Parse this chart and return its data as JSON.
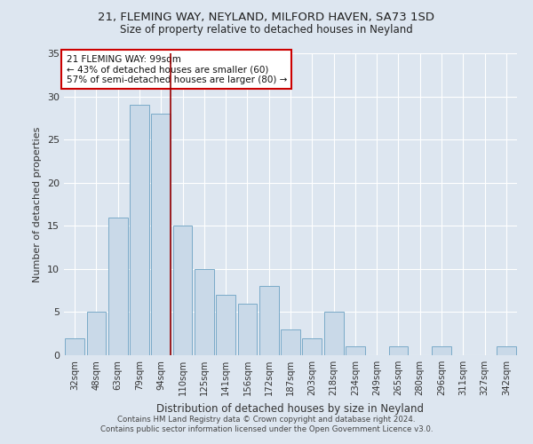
{
  "title1": "21, FLEMING WAY, NEYLAND, MILFORD HAVEN, SA73 1SD",
  "title2": "Size of property relative to detached houses in Neyland",
  "xlabel": "Distribution of detached houses by size in Neyland",
  "ylabel": "Number of detached properties",
  "categories": [
    "32sqm",
    "48sqm",
    "63sqm",
    "79sqm",
    "94sqm",
    "110sqm",
    "125sqm",
    "141sqm",
    "156sqm",
    "172sqm",
    "187sqm",
    "203sqm",
    "218sqm",
    "234sqm",
    "249sqm",
    "265sqm",
    "280sqm",
    "296sqm",
    "311sqm",
    "327sqm",
    "342sqm"
  ],
  "values": [
    2,
    5,
    16,
    29,
    28,
    15,
    10,
    7,
    6,
    8,
    3,
    2,
    5,
    1,
    0,
    1,
    0,
    1,
    0,
    0,
    1
  ],
  "bar_color": "#c9d9e8",
  "bar_edge_color": "#7aaac8",
  "bg_color": "#dde6f0",
  "grid_color": "#ffffff",
  "vline_x_index": 4,
  "vline_color": "#990000",
  "annotation_text": "21 FLEMING WAY: 99sqm\n← 43% of detached houses are smaller (60)\n57% of semi-detached houses are larger (80) →",
  "annotation_box_color": "#ffffff",
  "annotation_box_edge": "#cc0000",
  "ylim": [
    0,
    35
  ],
  "yticks": [
    0,
    5,
    10,
    15,
    20,
    25,
    30,
    35
  ],
  "footnote": "Contains HM Land Registry data © Crown copyright and database right 2024.\nContains public sector information licensed under the Open Government Licence v3.0."
}
